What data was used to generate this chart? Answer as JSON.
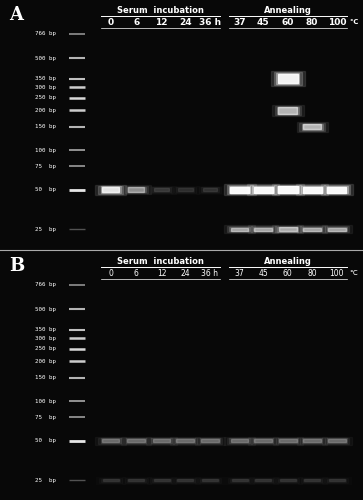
{
  "bg_color": "#080808",
  "text_color": "#ffffff",
  "ladder_labels_A": [
    "766 bp",
    "500 bp",
    "350 bp",
    "300 bp",
    "250 bp",
    "200 bp",
    "150 bp",
    "100 bp",
    "75  bp",
    "50  bp",
    "25  bp"
  ],
  "ladder_labels_B": [
    "766 bp",
    "500 bp",
    "350 bp",
    "300 bp",
    "250 bp",
    "200 bp",
    "150 bp",
    "100 bp",
    "75  bp",
    "50  bp",
    "25  bp"
  ],
  "bp_sizes": [
    766,
    500,
    350,
    300,
    250,
    200,
    150,
    100,
    75,
    50,
    25
  ],
  "serum_labels": [
    "0",
    "6",
    "12",
    "24",
    "36 h"
  ],
  "annealing_labels": [
    "37",
    "45",
    "60",
    "80",
    "100"
  ],
  "serum_title": "Serum  incubation",
  "annealing_title": "Annealing",
  "panel_A_label": "A",
  "panel_B_label": "B"
}
